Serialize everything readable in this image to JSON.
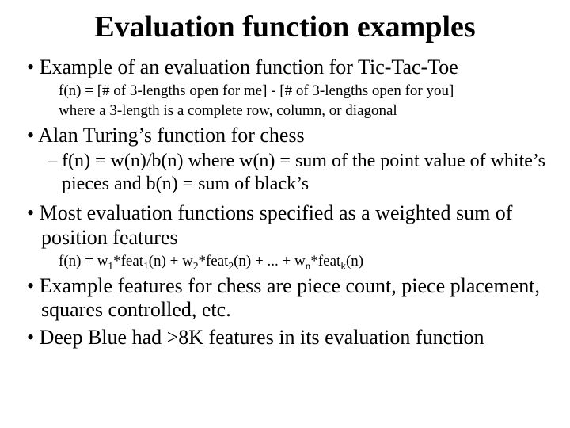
{
  "colors": {
    "background": "#ffffff",
    "text": "#000000"
  },
  "typography": {
    "family": "Times New Roman",
    "title_fontsize": 38,
    "bullet_fontsize": 26,
    "sub_fontsize": 19,
    "dash_fontsize": 24,
    "title_weight": "bold"
  },
  "title": "Evaluation function examples",
  "bullets": {
    "b1": "Example of an evaluation function for Tic-Tac-Toe",
    "b1_sub1": "f(n) = [# of 3-lengths open for me] - [# of 3-lengths open for you]",
    "b1_sub2": "where a 3-length is a complete row, column, or diagonal",
    "b2": "Alan Turing’s function for chess",
    "b2_dash_html": "f(n) = w(n)/b(n) where w(n) = sum of the point value of white’s pieces and b(n) = sum of black’s",
    "b3": "Most evaluation functions specified as a weighted sum of position features",
    "b3_sub_html": "f(n) = w<sub>1</sub>*feat<sub>1</sub>(n) + w<sub>2</sub>*feat<sub>2</sub>(n) + ... + w<sub>n</sub>*feat<sub>k</sub>(n)",
    "b4": "Example features for chess are piece count,  piece placement, squares controlled, etc.",
    "b5": "Deep Blue had >8K features in its evaluation function"
  }
}
